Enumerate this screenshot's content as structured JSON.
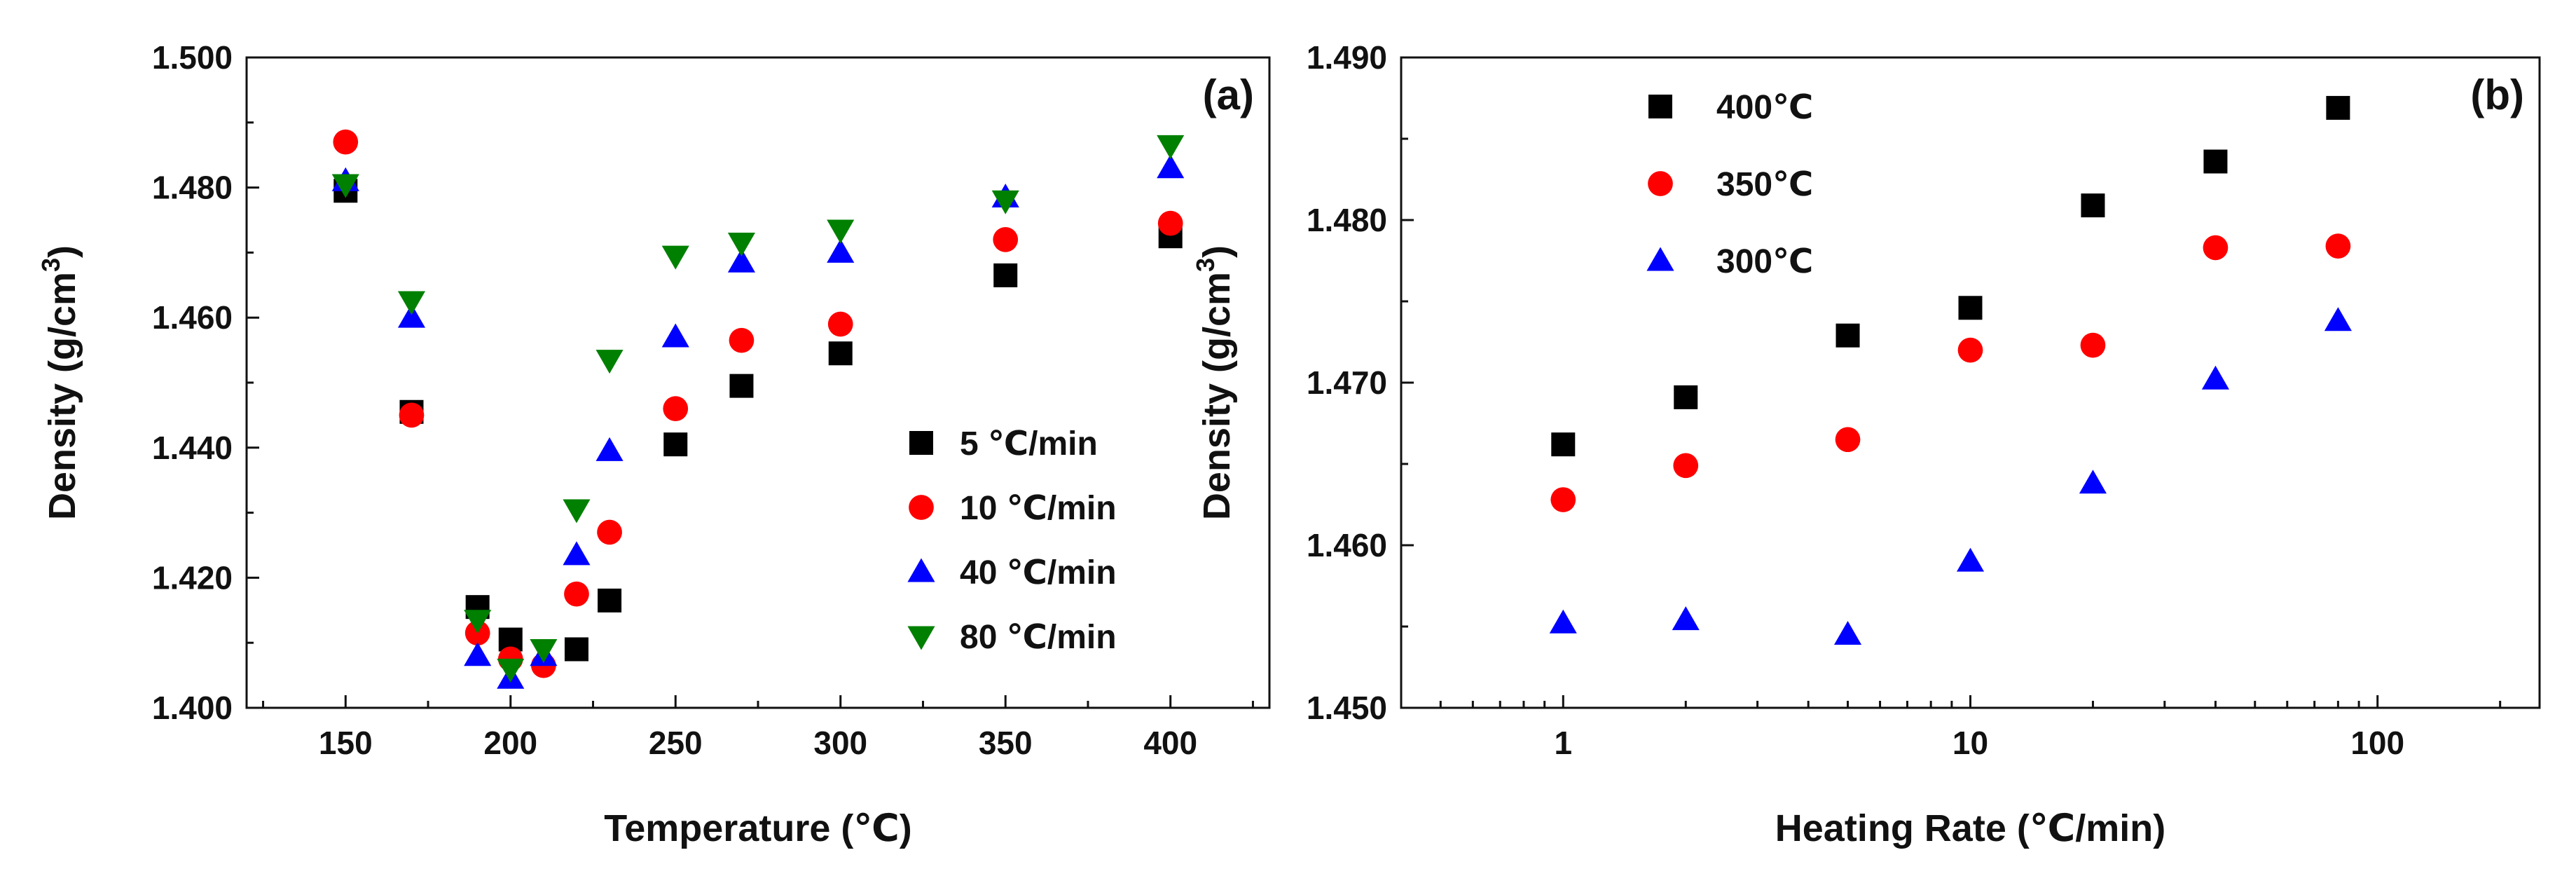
{
  "chart_data": [
    {
      "type": "scatter",
      "panel_label": "(a)",
      "xlabel": "Temperature (℃)",
      "ylabel": "Density (g/cm",
      "ylabel_sup": "3",
      "ylabel_close": ")",
      "xlim": [
        120,
        430
      ],
      "ylim": [
        1.4,
        1.5
      ],
      "x_scale": "linear",
      "xticks": [
        150,
        200,
        250,
        300,
        350,
        400
      ],
      "xtick_labels": [
        "150",
        "200",
        "250",
        "300",
        "350",
        "400"
      ],
      "yticks": [
        1.4,
        1.42,
        1.44,
        1.46,
        1.48,
        1.5
      ],
      "ytick_labels": [
        "1.400",
        "1.420",
        "1.440",
        "1.460",
        "1.480",
        "1.500"
      ],
      "legend_position": "lower-right",
      "series": [
        {
          "name": "5 ℃/min",
          "marker": "square",
          "color": "#000000",
          "x": [
            150,
            170,
            190,
            200,
            220,
            230,
            250,
            270,
            300,
            350,
            400
          ],
          "y": [
            1.4795,
            1.4455,
            1.4155,
            1.4105,
            1.409,
            1.4165,
            1.4405,
            1.4495,
            1.4545,
            1.4665,
            1.4725
          ]
        },
        {
          "name": "10 ℃/min",
          "marker": "circle",
          "color": "#ff0000",
          "x": [
            150,
            170,
            190,
            200,
            210,
            220,
            230,
            250,
            270,
            300,
            350,
            400
          ],
          "y": [
            1.487,
            1.445,
            1.4115,
            1.4075,
            1.4065,
            1.4175,
            1.427,
            1.446,
            1.4565,
            1.459,
            1.472,
            1.4745
          ]
        },
        {
          "name": "40 ℃/min",
          "marker": "triangle-up",
          "color": "#0000ff",
          "x": [
            150,
            170,
            190,
            200,
            210,
            220,
            230,
            250,
            270,
            300,
            350,
            400
          ],
          "y": [
            1.481,
            1.46,
            1.408,
            1.4045,
            1.408,
            1.4235,
            1.4395,
            1.457,
            1.4685,
            1.47,
            1.4785,
            1.483
          ]
        },
        {
          "name": "80 ℃/min",
          "marker": "triangle-down",
          "color": "#008000",
          "x": [
            150,
            170,
            190,
            200,
            210,
            220,
            230,
            250,
            270,
            300,
            350,
            400
          ],
          "y": [
            1.4805,
            1.4625,
            1.4135,
            1.406,
            1.409,
            1.4305,
            1.4535,
            1.4695,
            1.4715,
            1.4735,
            1.478,
            1.4865
          ]
        }
      ]
    },
    {
      "type": "scatter",
      "panel_label": "(b)",
      "xlabel": "Heating Rate (℃/min)",
      "ylabel": "Density (g/cm",
      "ylabel_sup": "3",
      "ylabel_close": ")",
      "xlim": [
        0.4,
        250
      ],
      "ylim": [
        1.45,
        1.49
      ],
      "x_scale": "log",
      "xticks": [
        1,
        10,
        100
      ],
      "xtick_labels": [
        "1",
        "10",
        "100"
      ],
      "yticks": [
        1.45,
        1.46,
        1.47,
        1.48,
        1.49
      ],
      "ytick_labels": [
        "1.450",
        "1.460",
        "1.470",
        "1.480",
        "1.490"
      ],
      "legend_position": "top-left",
      "series": [
        {
          "name": "400℃",
          "marker": "square",
          "color": "#000000",
          "x": [
            1,
            2,
            5,
            10,
            20,
            40,
            80
          ],
          "y": [
            1.4662,
            1.4691,
            1.4729,
            1.4746,
            1.4809,
            1.4836,
            1.4869
          ]
        },
        {
          "name": "350℃",
          "marker": "circle",
          "color": "#ff0000",
          "x": [
            1,
            2,
            5,
            10,
            20,
            40,
            80
          ],
          "y": [
            1.4628,
            1.4649,
            1.4665,
            1.472,
            1.4723,
            1.4783,
            1.4784
          ]
        },
        {
          "name": "300℃",
          "marker": "triangle-up",
          "color": "#0000ff",
          "x": [
            1,
            2,
            5,
            10,
            20,
            40,
            80
          ],
          "y": [
            1.4552,
            1.4554,
            1.4545,
            1.459,
            1.4638,
            1.4702,
            1.4738
          ]
        }
      ]
    }
  ]
}
